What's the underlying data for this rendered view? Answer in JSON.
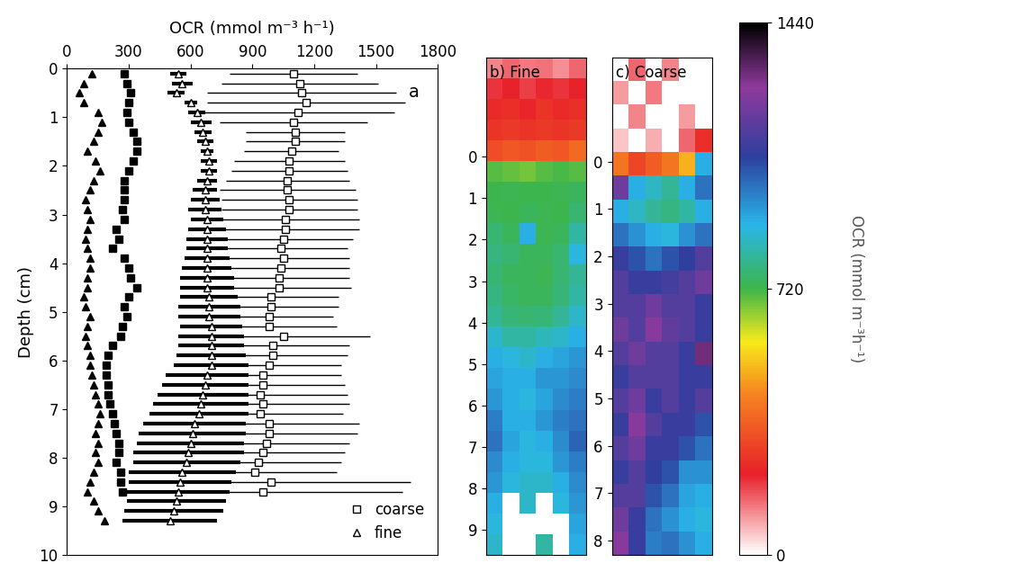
{
  "chart_data": [
    {
      "type": "scatter",
      "title": "a",
      "orientation": "horizontal",
      "x_label": "OCR (mmol m⁻³ h⁻¹)",
      "y_label": "Depth (cm)",
      "xlim": [
        0,
        1800
      ],
      "xticks": [
        0,
        300,
        600,
        900,
        1200,
        1500,
        1800
      ],
      "ylim": [
        10,
        0
      ],
      "yticks": [
        0,
        1,
        2,
        3,
        4,
        5,
        6,
        7,
        8,
        9,
        10
      ],
      "legend": "lower right",
      "series": [
        {
          "name": "coarse",
          "color": "#000000",
          "marker": "open-square",
          "y": [
            0.1,
            0.3,
            0.5,
            0.7,
            0.9,
            1.1,
            1.3,
            1.5,
            1.7,
            1.9,
            2.1,
            2.3,
            2.5,
            2.7,
            2.9,
            3.1,
            3.3,
            3.5,
            3.7,
            3.9,
            4.1,
            4.3,
            4.5,
            4.7,
            4.9,
            5.1,
            5.3,
            5.5,
            5.7,
            5.9,
            6.1,
            6.3,
            6.5,
            6.7,
            6.9,
            7.1,
            7.3,
            7.5,
            7.7,
            7.9,
            8.1,
            8.3,
            8.5,
            8.7
          ],
          "values": [
            1100,
            1130,
            1140,
            1160,
            1120,
            1100,
            1110,
            1110,
            1090,
            1080,
            1080,
            1070,
            1070,
            1080,
            1080,
            1060,
            1060,
            1050,
            1040,
            1050,
            1040,
            1030,
            1030,
            990,
            990,
            980,
            980,
            1050,
            1000,
            1000,
            980,
            950,
            950,
            940,
            950,
            940,
            980,
            980,
            970,
            950,
            930,
            910,
            990,
            950
          ],
          "error": [
            310,
            380,
            460,
            480,
            470,
            360,
            240,
            240,
            230,
            270,
            280,
            300,
            330,
            330,
            330,
            360,
            360,
            340,
            320,
            320,
            330,
            340,
            350,
            330,
            330,
            310,
            330,
            420,
            370,
            360,
            350,
            380,
            400,
            420,
            420,
            400,
            440,
            430,
            400,
            400,
            400,
            400,
            680,
            680
          ]
        },
        {
          "name": "fine",
          "color": "#000000",
          "marker": "open-triangle",
          "y": [
            0.1,
            0.3,
            0.5,
            0.7,
            0.9,
            1.1,
            1.3,
            1.5,
            1.7,
            1.9,
            2.1,
            2.3,
            2.5,
            2.7,
            2.9,
            3.1,
            3.3,
            3.5,
            3.7,
            3.9,
            4.1,
            4.3,
            4.5,
            4.7,
            4.9,
            5.1,
            5.3,
            5.5,
            5.7,
            5.9,
            6.1,
            6.3,
            6.5,
            6.7,
            6.9,
            7.1,
            7.3,
            7.5,
            7.7,
            7.9,
            8.1,
            8.3,
            8.5,
            8.7,
            8.9,
            9.1,
            9.3
          ],
          "values": [
            540,
            560,
            530,
            600,
            630,
            650,
            660,
            670,
            680,
            690,
            690,
            680,
            670,
            670,
            670,
            680,
            680,
            680,
            680,
            680,
            680,
            680,
            680,
            690,
            690,
            690,
            700,
            700,
            700,
            700,
            700,
            680,
            670,
            660,
            650,
            640,
            620,
            610,
            600,
            590,
            580,
            560,
            550,
            540,
            530,
            520,
            500
          ],
          "error": [
            40,
            50,
            40,
            30,
            40,
            50,
            40,
            40,
            30,
            40,
            40,
            50,
            60,
            70,
            80,
            80,
            90,
            100,
            100,
            110,
            120,
            130,
            130,
            140,
            150,
            150,
            150,
            160,
            160,
            170,
            180,
            200,
            210,
            220,
            230,
            240,
            250,
            260,
            260,
            270,
            260,
            260,
            250,
            250,
            240,
            240,
            230
          ]
        },
        {
          "color": "#000000",
          "marker": "filled-square",
          "y": [
            0.1,
            0.3,
            0.5,
            0.7,
            0.9,
            1.1,
            1.3,
            1.5,
            1.7,
            1.9,
            2.1,
            2.3,
            2.5,
            2.7,
            2.9,
            3.1,
            3.3,
            3.5,
            3.7,
            3.9,
            4.1,
            4.3,
            4.5,
            4.7,
            4.9,
            5.1,
            5.3,
            5.5,
            5.7,
            5.9,
            6.1,
            6.3,
            6.5,
            6.7,
            6.9,
            7.1,
            7.3,
            7.5,
            7.7,
            7.9,
            8.1,
            8.3,
            8.5,
            8.7
          ],
          "values": [
            280,
            290,
            310,
            300,
            290,
            300,
            320,
            340,
            340,
            320,
            300,
            280,
            280,
            280,
            270,
            280,
            240,
            250,
            220,
            280,
            300,
            310,
            340,
            300,
            280,
            290,
            270,
            260,
            220,
            200,
            190,
            190,
            200,
            200,
            210,
            220,
            230,
            240,
            250,
            250,
            240,
            260,
            260,
            270
          ]
        },
        {
          "color": "#000000",
          "marker": "filled-triangle",
          "y": [
            0.1,
            0.3,
            0.5,
            0.7,
            0.9,
            1.1,
            1.3,
            1.5,
            1.7,
            1.9,
            2.1,
            2.3,
            2.5,
            2.7,
            2.9,
            3.1,
            3.3,
            3.5,
            3.7,
            3.9,
            4.1,
            4.3,
            4.5,
            4.7,
            4.9,
            5.1,
            5.3,
            5.5,
            5.7,
            5.9,
            6.1,
            6.3,
            6.5,
            6.7,
            6.9,
            7.1,
            7.3,
            7.5,
            7.7,
            7.9,
            8.1,
            8.3,
            8.5,
            8.7,
            8.9,
            9.1,
            9.3
          ],
          "values": [
            120,
            80,
            60,
            80,
            150,
            170,
            150,
            130,
            100,
            140,
            160,
            130,
            110,
            90,
            100,
            110,
            100,
            90,
            100,
            110,
            110,
            100,
            100,
            80,
            90,
            110,
            100,
            90,
            100,
            110,
            110,
            120,
            130,
            140,
            150,
            160,
            150,
            140,
            150,
            140,
            150,
            130,
            110,
            100,
            130,
            150,
            180
          ]
        }
      ]
    },
    {
      "type": "heatmap",
      "title": "b) Fine",
      "tick_labels": "y",
      "ylim": [
        9.6,
        -2.4
      ],
      "yticks": [
        0,
        1,
        2,
        3,
        4,
        5,
        6,
        7,
        8,
        9
      ],
      "row_edges": [
        -2.4,
        -1.9,
        -1.4,
        -0.9,
        -0.4,
        0.1,
        0.6,
        1.1,
        1.6,
        2.1,
        2.6,
        3.1,
        3.6,
        4.1,
        4.6,
        5.1,
        5.6,
        6.1,
        6.6,
        7.1,
        7.6,
        8.1,
        8.6,
        9.1,
        9.6
      ],
      "cells": [
        [
          120,
          150,
          130,
          140,
          110,
          150
        ],
        [
          200,
          220,
          190,
          210,
          200,
          220
        ],
        [
          240,
          250,
          230,
          260,
          240,
          250
        ],
        [
          260,
          270,
          260,
          270,
          260,
          270
        ],
        [
          320,
          340,
          330,
          350,
          340,
          380
        ],
        [
          700,
          690,
          680,
          700,
          710,
          700
        ],
        [
          720,
          730,
          720,
          720,
          730,
          740
        ],
        [
          730,
          720,
          740,
          730,
          720,
          760
        ],
        [
          760,
          740,
          900,
          730,
          740,
          820
        ],
        [
          780,
          760,
          740,
          740,
          760,
          880
        ],
        [
          760,
          740,
          740,
          730,
          760,
          800
        ],
        [
          780,
          750,
          740,
          740,
          770,
          820
        ],
        [
          800,
          770,
          760,
          770,
          800,
          860
        ],
        [
          860,
          820,
          820,
          840,
          860,
          900
        ],
        [
          900,
          880,
          860,
          900,
          920,
          940
        ],
        [
          920,
          900,
          900,
          940,
          940,
          960
        ],
        [
          940,
          900,
          880,
          920,
          960,
          980
        ],
        [
          980,
          900,
          900,
          940,
          980,
          1000
        ],
        [
          1000,
          920,
          880,
          900,
          960,
          1020
        ],
        [
          960,
          900,
          880,
          880,
          940,
          980
        ],
        [
          940,
          880,
          860,
          860,
          900,
          960
        ],
        [
          900,
          0,
          860,
          0,
          880,
          940
        ],
        [
          880,
          0,
          0,
          0,
          0,
          920
        ],
        [
          860,
          0,
          0,
          820,
          0,
          900
        ]
      ]
    },
    {
      "type": "heatmap",
      "title": "c) Coarse",
      "tick_labels": "y",
      "ylim": [
        8.3,
        -2.2
      ],
      "yticks": [
        0,
        1,
        2,
        3,
        4,
        5,
        6,
        7,
        8
      ],
      "row_edges": [
        -2.2,
        -1.7,
        -1.2,
        -0.7,
        -0.2,
        0.3,
        0.8,
        1.3,
        1.8,
        2.3,
        2.8,
        3.3,
        3.8,
        4.3,
        4.8,
        5.3,
        5.8,
        6.3,
        6.8,
        7.3,
        7.8,
        8.3
      ],
      "cells": [
        [
          0,
          150,
          0,
          120,
          0,
          0
        ],
        [
          100,
          0,
          130,
          0,
          0,
          0
        ],
        [
          0,
          120,
          0,
          0,
          100,
          0
        ],
        [
          60,
          0,
          80,
          0,
          150,
          250
        ],
        [
          400,
          300,
          350,
          400,
          500,
          900
        ],
        [
          1200,
          900,
          850,
          800,
          900,
          1000
        ],
        [
          900,
          850,
          800,
          780,
          820,
          900
        ],
        [
          1000,
          950,
          900,
          880,
          950,
          1000
        ],
        [
          1100,
          1050,
          1000,
          1050,
          1080,
          1150
        ],
        [
          1150,
          1100,
          1100,
          1120,
          1150,
          1200
        ],
        [
          1150,
          1150,
          1200,
          1150,
          1150,
          1100
        ],
        [
          1200,
          1150,
          1250,
          1180,
          1150,
          1100
        ],
        [
          1150,
          1200,
          1150,
          1150,
          1100,
          1300
        ],
        [
          1100,
          1150,
          1150,
          1150,
          1100,
          1100
        ],
        [
          1150,
          1200,
          1100,
          1150,
          1100,
          1150
        ],
        [
          1100,
          1250,
          1150,
          1100,
          1100,
          1050
        ],
        [
          1150,
          1200,
          1100,
          1100,
          1050,
          1000
        ],
        [
          1100,
          1150,
          1080,
          1050,
          950,
          950
        ],
        [
          1150,
          1150,
          1050,
          1000,
          920,
          900
        ],
        [
          1200,
          1100,
          1000,
          950,
          900,
          880
        ],
        [
          1250,
          1100,
          980,
          1000,
          950,
          900
        ]
      ],
      "colorbar": {
        "range": [
          0,
          1440
        ],
        "ticks": [
          0,
          720,
          1440
        ],
        "label": "OCR (mmol m⁻³h⁻¹)"
      }
    }
  ]
}
